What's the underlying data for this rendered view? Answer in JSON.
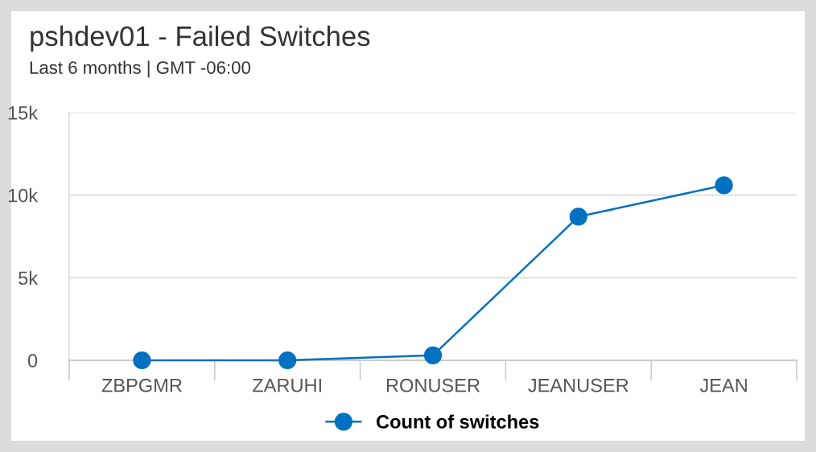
{
  "chart_data": {
    "type": "line",
    "title": "pshdev01 - Failed Switches",
    "subtitle": "Last 6 months | GMT -06:00",
    "categories": [
      "ZBPGMR",
      "ZARUHI",
      "RONUSER",
      "JEANUSER",
      "JEAN"
    ],
    "series": [
      {
        "name": "Count of switches",
        "color": "#0070c0",
        "values": [
          0,
          0,
          300,
          8700,
          10600
        ]
      }
    ],
    "ylim": [
      0,
      15000
    ],
    "yticks": [
      {
        "value": 0,
        "label": "0"
      },
      {
        "value": 5000,
        "label": "5k"
      },
      {
        "value": 10000,
        "label": "10k"
      },
      {
        "value": 15000,
        "label": "15k"
      }
    ],
    "grid": "y",
    "legend": "bottom",
    "marker": "circle",
    "line_style": "solid"
  }
}
